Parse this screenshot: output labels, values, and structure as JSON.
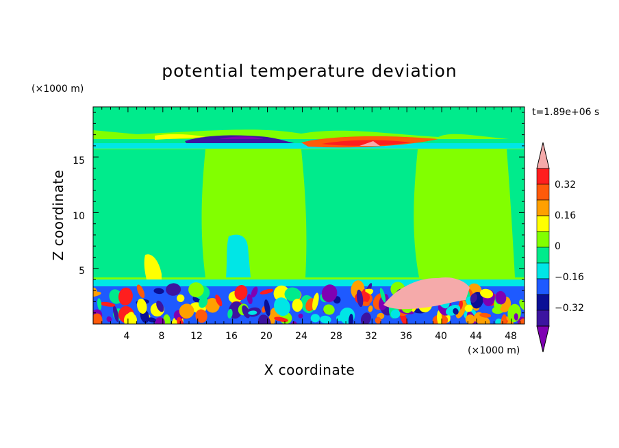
{
  "chart_data": {
    "type": "heatmap",
    "title": "potential temperature deviation",
    "xlabel": "X coordinate",
    "ylabel": "Z coordinate",
    "x_unit": "(×1000 m)",
    "y_unit": "(×1000 m)",
    "time_label": "t=1.89e+06 s",
    "xlim": [
      0,
      49.5
    ],
    "ylim": [
      0,
      19.5
    ],
    "x_ticks": [
      "4",
      "8",
      "12",
      "16",
      "20",
      "24",
      "28",
      "32",
      "36",
      "40",
      "44",
      "48"
    ],
    "y_ticks": [
      "5",
      "10",
      "15"
    ],
    "grid": false,
    "colorbar": {
      "levels": [
        -0.4,
        -0.32,
        -0.24,
        -0.16,
        -0.08,
        0,
        0.08,
        0.16,
        0.24,
        0.32,
        0.4
      ],
      "tick_labels": [
        "0.32",
        "0.16",
        "0",
        "−0.16",
        "−0.32"
      ],
      "colors": [
        "#7f00b3",
        "#3c14a0",
        "#0a0f96",
        "#1e5aff",
        "#00e6e6",
        "#00eb8c",
        "#82ff00",
        "#ffff00",
        "#ffa000",
        "#ff5a0a",
        "#ff1e1e",
        "#f5aaaa"
      ],
      "extend": "both"
    },
    "field_regions": [
      {
        "kind": "background",
        "value": 0.02
      },
      {
        "kind": "band",
        "x_range": [
          0,
          49.5
        ],
        "z_range": [
          9.7,
          18.5
        ],
        "value": 0.05
      },
      {
        "kind": "band",
        "x_range": [
          0,
          49.5
        ],
        "z_range": [
          16.1,
          16.6
        ],
        "value": -0.06
      },
      {
        "kind": "band",
        "x_range": [
          0,
          49.5
        ],
        "z_range": [
          3.5,
          4.0
        ],
        "value": -0.06
      },
      {
        "kind": "band",
        "x_range": [
          0,
          49.5
        ],
        "z_range": [
          0,
          3.3
        ],
        "value": "turbulent, -0.4 to 0.4"
      },
      {
        "kind": "patch",
        "x_range": [
          14,
          22
        ],
        "z_range": [
          16.4,
          17.2
        ],
        "value": -0.4
      },
      {
        "kind": "patch",
        "x_range": [
          26,
          40
        ],
        "z_range": [
          16.2,
          17.4
        ],
        "value": 0.4
      },
      {
        "kind": "patch",
        "x_range": [
          33,
          43
        ],
        "z_range": [
          1.8,
          4.2
        ],
        "value": 0.4
      },
      {
        "kind": "patch",
        "x_range": [
          15,
          19
        ],
        "z_range": [
          4.8,
          8.2
        ],
        "value": -0.08
      },
      {
        "kind": "patch",
        "x_range": [
          6,
          8
        ],
        "z_range": [
          4.2,
          6.2
        ],
        "value": 0.16
      }
    ]
  }
}
